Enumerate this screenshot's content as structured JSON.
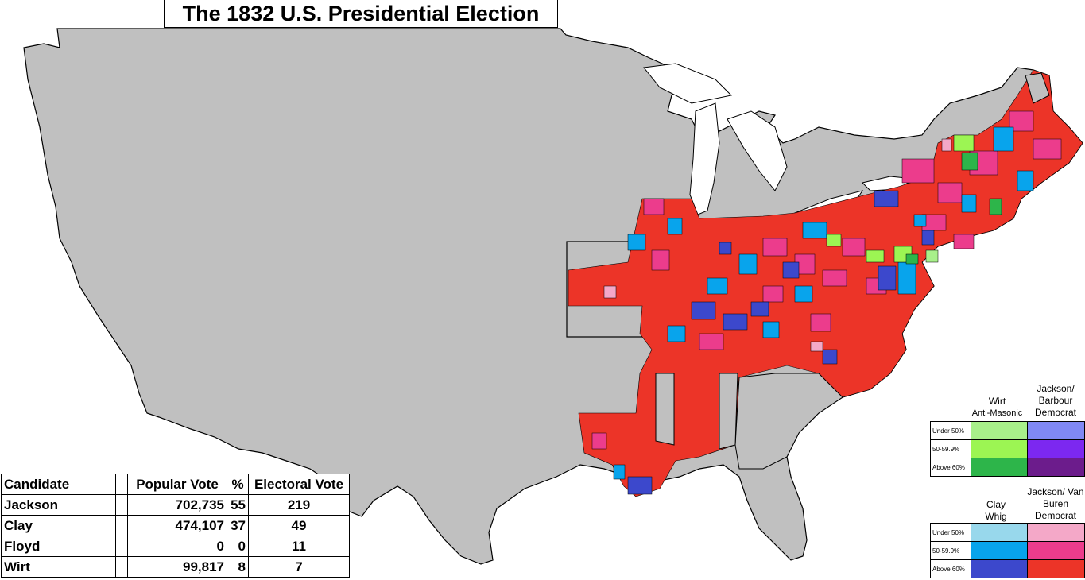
{
  "title": "The 1832 U.S. Presidential Election",
  "results_table": {
    "headers": {
      "candidate": "Candidate",
      "popular_vote": "Popular Vote",
      "percent": "%",
      "electoral_vote": "Electoral Vote"
    },
    "rows": [
      {
        "candidate": "Jackson",
        "popular_vote": "702,735",
        "percent": "55",
        "electoral_vote": "219"
      },
      {
        "candidate": "Clay",
        "popular_vote": "474,107",
        "percent": "37",
        "electoral_vote": "49"
      },
      {
        "candidate": "Floyd",
        "popular_vote": "0",
        "percent": "0",
        "electoral_vote": "11"
      },
      {
        "candidate": "Wirt",
        "popular_vote": "99,817",
        "percent": "8",
        "electoral_vote": "7"
      }
    ]
  },
  "legend_top": {
    "col1": {
      "name": "Wirt",
      "party": "Anti-Masonic"
    },
    "col2": {
      "name": "Jackson/ Barbour Democrat"
    },
    "rows": [
      "Under 50%",
      "50-59.9%",
      "Above 60%"
    ],
    "colors": {
      "wirt": [
        "#a8f08a",
        "#9cf553",
        "#2db54a"
      ],
      "jackson_barbour": [
        "#8088f4",
        "#7c28f0",
        "#6c1c8c"
      ]
    }
  },
  "legend_bottom": {
    "col1": {
      "name": "Clay Whig"
    },
    "col2": {
      "name": "Jackson/ Van Buren Democrat"
    },
    "rows": [
      "Under 50%",
      "50-59.9%",
      "Above 60%"
    ],
    "colors": {
      "clay": [
        "#98d8ec",
        "#08a4ec",
        "#3c48cc"
      ],
      "jackson_van_buren": [
        "#f4a8c8",
        "#ec3c8c",
        "#ec3428"
      ]
    }
  },
  "map_colors": {
    "non_voting": "#c0c0c0",
    "ocean": "#ffffff",
    "border": "#000000"
  }
}
